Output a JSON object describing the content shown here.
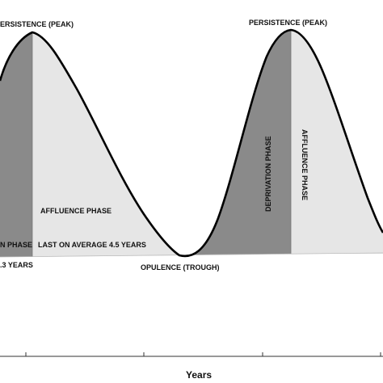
{
  "labels": {
    "peak_left": "ERSISTENCE (PEAK)",
    "peak_right": "PERSISTENCE (PEAK)",
    "deprivation_phase": "DEPRIVATION PHASE",
    "affluence_phase_vertical": "AFFLUENCE PHASE",
    "affluence_phase": "AFFLUENCE PHASE",
    "phase_left_cut": "N PHASE",
    "last_on_average": "LAST ON AVERAGE 4.5 YEARS",
    "years_left_cut": ".3 YEARS",
    "trough": "OPULENCE (TROUGH)",
    "x_axis_title": "Years"
  },
  "colors": {
    "deprivation_fill": "#8a8a8a",
    "affluence_fill": "#e6e6e6",
    "curve": "#000000",
    "axis": "#333333"
  }
}
